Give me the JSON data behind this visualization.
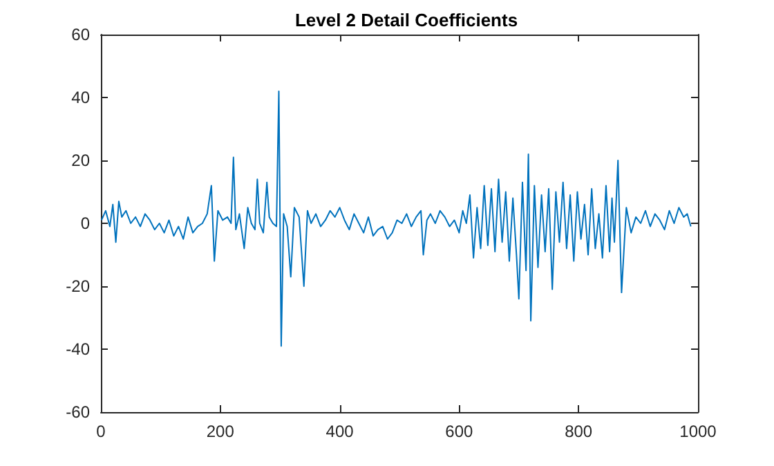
{
  "chart_data": {
    "type": "line",
    "title": "Level 2 Detail Coefficients",
    "x": [
      1,
      8,
      15,
      20,
      25,
      30,
      35,
      42,
      50,
      58,
      66,
      74,
      82,
      90,
      98,
      106,
      114,
      122,
      130,
      138,
      146,
      154,
      162,
      170,
      178,
      185,
      190,
      196,
      204,
      212,
      218,
      222,
      226,
      232,
      240,
      246,
      252,
      258,
      262,
      266,
      272,
      278,
      282,
      288,
      294,
      298,
      302,
      306,
      312,
      318,
      324,
      332,
      340,
      346,
      352,
      360,
      368,
      376,
      384,
      392,
      400,
      408,
      416,
      424,
      432,
      440,
      448,
      456,
      464,
      472,
      480,
      488,
      496,
      504,
      512,
      520,
      528,
      536,
      540,
      546,
      552,
      560,
      568,
      576,
      584,
      592,
      600,
      606,
      612,
      618,
      624,
      630,
      636,
      642,
      648,
      654,
      660,
      666,
      672,
      678,
      684,
      690,
      696,
      700,
      706,
      712,
      716,
      720,
      726,
      732,
      738,
      744,
      750,
      756,
      762,
      768,
      774,
      780,
      786,
      792,
      798,
      804,
      810,
      816,
      822,
      828,
      834,
      840,
      846,
      852,
      856,
      860,
      866,
      872,
      880,
      888,
      896,
      904,
      912,
      920,
      928,
      936,
      944,
      952,
      960,
      968,
      976,
      982,
      988
    ],
    "series": [
      {
        "color": "#0072bd",
        "values": [
          1,
          4,
          -1,
          6,
          -6,
          7,
          2,
          4,
          0,
          2,
          -1,
          3,
          1,
          -2,
          0,
          -3,
          1,
          -4,
          -1,
          -5,
          2,
          -3,
          -1,
          0,
          3,
          12,
          -12,
          4,
          1,
          2,
          0,
          21,
          -2,
          3,
          -8,
          5,
          0,
          -2,
          14,
          0,
          -3,
          13,
          2,
          0,
          -1,
          42,
          -39,
          3,
          -1,
          -17,
          5,
          2,
          -20,
          4,
          0,
          3,
          -1,
          1,
          4,
          2,
          5,
          1,
          -2,
          3,
          0,
          -3,
          2,
          -4,
          -2,
          -1,
          -5,
          -3,
          1,
          0,
          3,
          -1,
          2,
          4,
          -10,
          1,
          3,
          0,
          4,
          2,
          -1,
          1,
          -3,
          4,
          0,
          9,
          -11,
          5,
          -8,
          12,
          -7,
          11,
          -9,
          14,
          -6,
          10,
          -12,
          8,
          -10,
          -24,
          13,
          -15,
          22,
          -31,
          12,
          -14,
          9,
          -9,
          11,
          -21,
          10,
          -6,
          13,
          -8,
          9,
          -12,
          10,
          -5,
          6,
          -10,
          11,
          -8,
          3,
          -11,
          12,
          -9,
          8,
          -6,
          20,
          -22,
          5,
          -3,
          2,
          0,
          4,
          -1,
          3,
          1,
          -2,
          4,
          0,
          5,
          2,
          3,
          -1
        ]
      }
    ],
    "xlim": [
      0,
      1000
    ],
    "xticks": [
      0,
      200,
      400,
      600,
      800,
      1000
    ],
    "ylim": [
      -60,
      60
    ],
    "yticks": [
      -60,
      -40,
      -20,
      0,
      20,
      40,
      60
    ],
    "grid": false,
    "marker": "none",
    "line_style": "solid"
  }
}
